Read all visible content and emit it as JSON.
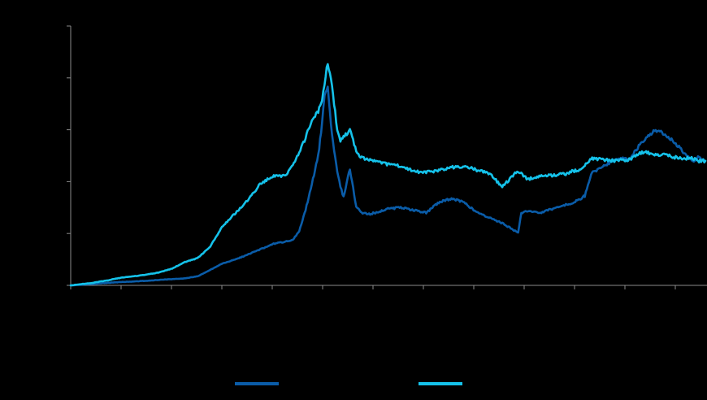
{
  "chart_data": {
    "type": "line",
    "title": "",
    "xlabel": "",
    "ylabel": "",
    "x_tick_count": 13,
    "y_tick_count": 6,
    "xlim": [
      0,
      100
    ],
    "ylim": [
      0,
      100
    ],
    "grid": false,
    "legend_placement": "bottom-center",
    "series": [
      {
        "color": "#0a5ca8",
        "x": [
          0,
          3,
          6,
          8,
          10,
          12,
          14,
          16,
          18,
          20,
          22,
          24,
          26,
          28,
          30,
          32,
          33,
          34,
          35,
          36,
          37,
          38,
          39,
          39.6,
          40,
          40.5,
          41,
          41.5,
          42,
          42.5,
          43,
          44,
          45,
          46,
          47,
          48,
          50,
          52,
          54,
          56,
          58,
          60,
          62,
          64,
          66,
          68,
          70,
          70.5,
          71,
          72,
          74,
          76,
          78,
          79,
          80,
          81,
          82,
          84,
          86,
          88,
          89,
          90,
          91,
          92,
          93,
          94,
          95,
          96,
          97,
          98,
          99,
          100
        ],
        "y": [
          0,
          0.5,
          1,
          1.3,
          1.5,
          1.8,
          2.1,
          2.4,
          2.7,
          3.5,
          6,
          8.5,
          10,
          12,
          14,
          16,
          16.5,
          17,
          17.5,
          21,
          29,
          39,
          50,
          62,
          73,
          76,
          62,
          52,
          44,
          38,
          34,
          45,
          30,
          28,
          27.5,
          28,
          29.5,
          30,
          29,
          28,
          32,
          33.5,
          32,
          28,
          26,
          24,
          21,
          20.5,
          28,
          28.5,
          28,
          29.5,
          31,
          31.5,
          33,
          34.5,
          43,
          46,
          49,
          48.5,
          52,
          55,
          58,
          59.5,
          59,
          57,
          55.5,
          53,
          50,
          48,
          49.5,
          48
        ]
      },
      {
        "color": "#15c2ea",
        "x": [
          0,
          3,
          6,
          8,
          10,
          12,
          14,
          16,
          18,
          20,
          22,
          24,
          26,
          28,
          30,
          32,
          33,
          34,
          35,
          36,
          37,
          38,
          39,
          39.6,
          40,
          40.5,
          41,
          41.5,
          42,
          42.5,
          43,
          44,
          45,
          46,
          47,
          48,
          50,
          52,
          54,
          56,
          58,
          60,
          62,
          64,
          66,
          68,
          70,
          70.5,
          71,
          72,
          74,
          76,
          78,
          79,
          80,
          81,
          82,
          84,
          86,
          88,
          89,
          90,
          91,
          92,
          93,
          94,
          95,
          96,
          97,
          98,
          99,
          100
        ],
        "y": [
          0,
          0.8,
          2,
          3,
          3.5,
          4.2,
          5,
          6.5,
          9,
          10.5,
          15,
          23,
          28,
          33,
          39.5,
          42,
          42,
          43,
          46,
          51,
          57,
          64,
          67,
          71,
          78,
          86,
          80,
          70,
          60,
          55.5,
          57,
          60,
          51.5,
          49,
          48.5,
          48,
          46.5,
          46,
          44,
          43.5,
          44.5,
          45.5,
          46,
          44.5,
          43,
          38,
          43,
          43.5,
          43,
          41,
          42,
          42.5,
          43,
          44,
          44.5,
          46,
          49,
          48.5,
          48,
          48.5,
          50,
          51.5,
          51,
          50.5,
          50.5,
          50,
          49.5,
          49,
          49,
          49,
          48,
          48
        ]
      }
    ]
  }
}
